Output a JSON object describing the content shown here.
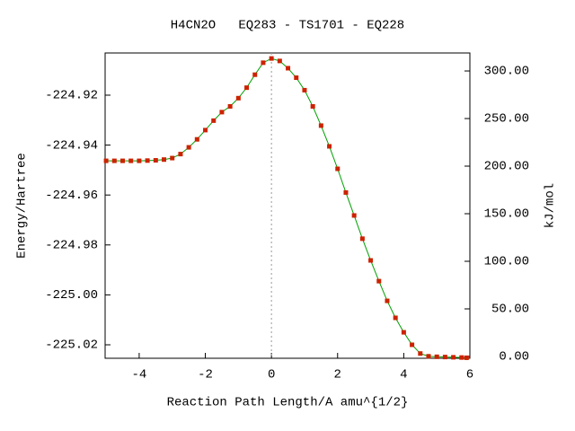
{
  "chart_data": {
    "type": "line",
    "title": "H4CN2O   EQ283 - TS1701 - EQ228",
    "xlabel": "Reaction Path Length/A amu^{1/2}",
    "ylabel": "Energy/Hartree",
    "y2label": "kJ/mol",
    "x": [
      -5,
      -4.75,
      -4.5,
      -4.25,
      -4,
      -3.75,
      -3.5,
      -3.25,
      -3,
      -2.75,
      -2.5,
      -2.25,
      -2,
      -1.75,
      -1.5,
      -1.25,
      -1,
      -0.75,
      -0.5,
      -0.25,
      0,
      0.25,
      0.5,
      0.75,
      1,
      1.25,
      1.5,
      1.75,
      2,
      2.25,
      2.5,
      2.75,
      3,
      3.25,
      3.5,
      3.75,
      4,
      4.25,
      4.5,
      4.75,
      5,
      5.25,
      5.5,
      5.75,
      5.9
    ],
    "series": [
      {
        "color": "#cc2200",
        "line_color": "#00a000",
        "values": [
          -224.9463,
          -224.9463,
          -224.9463,
          -224.9463,
          -224.9463,
          -224.9462,
          -224.9461,
          -224.9458,
          -224.9452,
          -224.9436,
          -224.9409,
          -224.9377,
          -224.934,
          -224.9302,
          -224.9268,
          -224.9245,
          -224.9212,
          -224.917,
          -224.9118,
          -224.907,
          -224.9053,
          -224.9063,
          -224.9092,
          -224.913,
          -224.918,
          -224.9245,
          -224.9322,
          -224.9405,
          -224.9495,
          -224.959,
          -224.9682,
          -224.9775,
          -224.9862,
          -224.9945,
          -225.0024,
          -225.0092,
          -225.015,
          -225.02,
          -225.0235,
          -225.0246,
          -225.0248,
          -225.0249,
          -225.025,
          -225.0251,
          -225.0252
        ]
      }
    ],
    "xlim": [
      -5.03,
      6.0
    ],
    "xticks": [
      -4,
      -2,
      0,
      2,
      4,
      6
    ],
    "ylim": [
      -225.0254,
      -224.9031
    ],
    "yticks": [
      {
        "value": -225.02,
        "label": "-225.02"
      },
      {
        "value": -225,
        "label": "-225.00"
      },
      -224.98,
      -224.96,
      -224.94,
      -224.92
    ],
    "y2lim": [
      -1.9,
      318.9
    ],
    "y2ticks": [
      {
        "value": 0,
        "label": "0.00"
      },
      {
        "value": 50,
        "label": "50.00"
      },
      {
        "value": 100,
        "label": "100.00"
      },
      {
        "value": 150,
        "label": "150.00"
      },
      {
        "value": 200,
        "label": "200.00"
      },
      {
        "value": 250,
        "label": "250.00"
      },
      {
        "value": 300,
        "label": "300.00"
      }
    ],
    "reference_line_x": 0
  }
}
